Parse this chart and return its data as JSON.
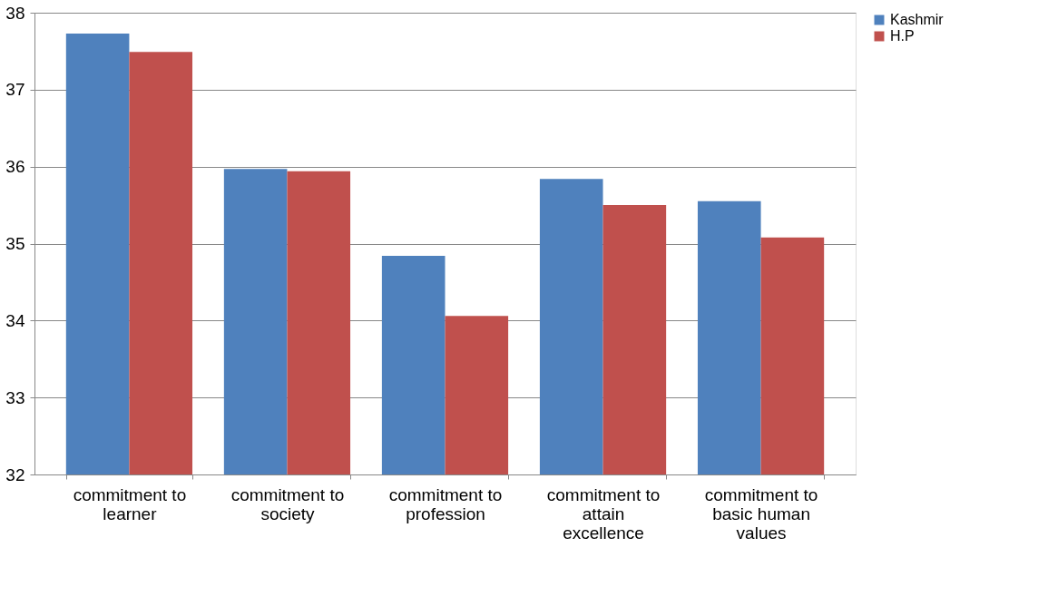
{
  "chart_data": {
    "type": "bar",
    "categories": [
      "commitment to learner",
      "commitment to society",
      "commitment to profession",
      "commitment to attain excellence",
      "commitment to basic human values"
    ],
    "series": [
      {
        "name": "Kashmir",
        "color": "#4f81bd",
        "values": [
          37.73,
          35.97,
          34.84,
          35.84,
          35.55
        ]
      },
      {
        "name": "H.P",
        "color": "#c0504d",
        "values": [
          37.49,
          35.94,
          34.06,
          35.5,
          35.08
        ]
      }
    ],
    "ylim": [
      32,
      38
    ],
    "yticks": [
      32,
      33,
      34,
      35,
      36,
      37,
      38
    ],
    "grid": "y",
    "legend": "right"
  }
}
